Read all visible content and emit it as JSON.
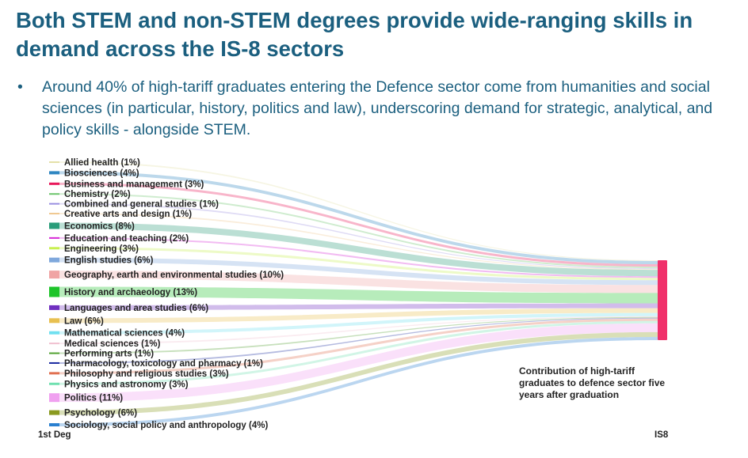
{
  "slide": {
    "title": "Both STEM and non-STEM degrees provide wide-ranging skills in demand across the IS-8 sectors",
    "bullet_marker": "•",
    "bullet": "Around 40% of high-tariff graduates entering the Defence sector come from humanities and social sciences (in particular, history, politics and law), underscoring demand for strategic, analytical, and policy skills - alongside STEM."
  },
  "chart_data": {
    "type": "sankey",
    "source_axis_label": "1st Deg",
    "target_axis_label": "IS8",
    "target": {
      "name": "IS8",
      "color": "#f0306a"
    },
    "annotation": "Contribution of high-tariff graduates to defence sector five years after graduation",
    "unit": "%",
    "nodes": [
      {
        "label": "Allied health (1%)",
        "value": 1,
        "color": "#e4e0a8"
      },
      {
        "label": "Biosciences (4%)",
        "value": 4,
        "color": "#2e86c1"
      },
      {
        "label": "Business and management (3%)",
        "value": 3,
        "color": "#e8195b"
      },
      {
        "label": "Chemistry (2%)",
        "value": 2,
        "color": "#6ac46a"
      },
      {
        "label": "Combined and general studies (1%)",
        "value": 1,
        "color": "#9a8fe0"
      },
      {
        "label": "Creative arts and design (1%)",
        "value": 1,
        "color": "#f0c890"
      },
      {
        "label": "Economics (8%)",
        "value": 8,
        "color": "#2a9d7a"
      },
      {
        "label": "Education and teaching (2%)",
        "value": 2,
        "color": "#d62ad6"
      },
      {
        "label": "Engineering (3%)",
        "value": 3,
        "color": "#c8f050"
      },
      {
        "label": "English studies (6%)",
        "value": 6,
        "color": "#7fa8dc"
      },
      {
        "label": "Geography, earth and environmental studies (10%)",
        "value": 10,
        "color": "#f0a4a4"
      },
      {
        "label": "History and archaeology (13%)",
        "value": 13,
        "color": "#1ec42a"
      },
      {
        "label": "Languages and area studies (6%)",
        "value": 6,
        "color": "#7030c0"
      },
      {
        "label": "Law (6%)",
        "value": 6,
        "color": "#e8c050"
      },
      {
        "label": "Mathematical sciences (4%)",
        "value": 4,
        "color": "#70e0f0"
      },
      {
        "label": "Medical sciences (1%)",
        "value": 1,
        "color": "#f0c0d0"
      },
      {
        "label": "Performing arts (1%)",
        "value": 1,
        "color": "#50a030"
      },
      {
        "label": "Pharmacology, toxicology and pharmacy (1%)",
        "value": 1,
        "color": "#1a2aa0"
      },
      {
        "label": "Philosophy and religious studies (3%)",
        "value": 3,
        "color": "#e07050"
      },
      {
        "label": "Physics and astronomy (3%)",
        "value": 3,
        "color": "#70e0b0"
      },
      {
        "label": "Politics (11%)",
        "value": 11,
        "color": "#f0a0f0"
      },
      {
        "label": "Psychology (6%)",
        "value": 6,
        "color": "#8a9a20"
      },
      {
        "label": "Sociology, social policy and anthropology (4%)",
        "value": 4,
        "color": "#2a80d0"
      }
    ]
  }
}
